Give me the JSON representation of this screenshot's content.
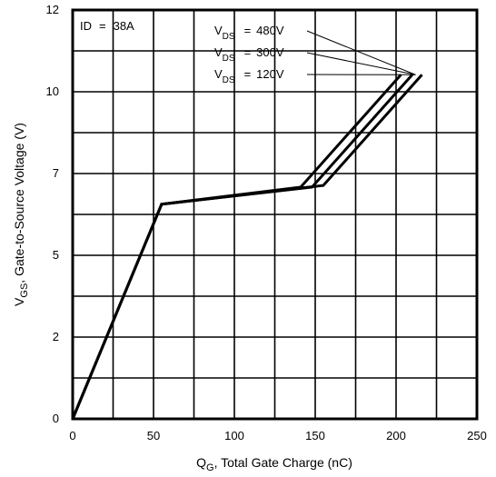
{
  "chart_data": {
    "type": "line",
    "title": "",
    "xlabel": {
      "main": "Q",
      "sub": "G",
      "rest": ", Total Gate Charge (nC)"
    },
    "ylabel": {
      "main": "V",
      "sub": "GS",
      "rest": ", Gate-to-Source Voltage (V)"
    },
    "xlim": [
      0,
      250
    ],
    "ylim": [
      0,
      12
    ],
    "x_ticks": [
      {
        "value": 0,
        "label": "0"
      },
      {
        "value": 50,
        "label": "50"
      },
      {
        "value": 100,
        "label": "100"
      },
      {
        "value": 150,
        "label": "150"
      },
      {
        "value": 200,
        "label": "200"
      },
      {
        "value": 250,
        "label": "250"
      }
    ],
    "y_ticks": [
      {
        "value": 0,
        "label": "0"
      },
      {
        "value": 2.4,
        "label": "2"
      },
      {
        "value": 4.8,
        "label": "5"
      },
      {
        "value": 7.2,
        "label": "7"
      },
      {
        "value": 9.6,
        "label": "10"
      },
      {
        "value": 12,
        "label": "12"
      }
    ],
    "grid": true,
    "conditions": {
      "label": "ID",
      "eq": "=",
      "value": "38A"
    },
    "series": [
      {
        "name": {
          "main": "V",
          "sub": "DS",
          "eq": "=",
          "value": "480V"
        },
        "points": [
          [
            0,
            0
          ],
          [
            55,
            6.3
          ],
          [
            141,
            6.8
          ],
          [
            203,
            10.1
          ]
        ]
      },
      {
        "name": {
          "main": "V",
          "sub": "DS",
          "eq": "=",
          "value": "300V"
        },
        "points": [
          [
            0,
            0
          ],
          [
            55,
            6.3
          ],
          [
            148,
            6.8
          ],
          [
            210,
            10.1
          ]
        ]
      },
      {
        "name": {
          "main": "V",
          "sub": "DS",
          "eq": "=",
          "value": "120V"
        },
        "points": [
          [
            0,
            0
          ],
          [
            55,
            6.3
          ],
          [
            155,
            6.85
          ],
          [
            216,
            10.1
          ]
        ]
      }
    ],
    "leader_target": [
      212,
      10.1
    ]
  }
}
